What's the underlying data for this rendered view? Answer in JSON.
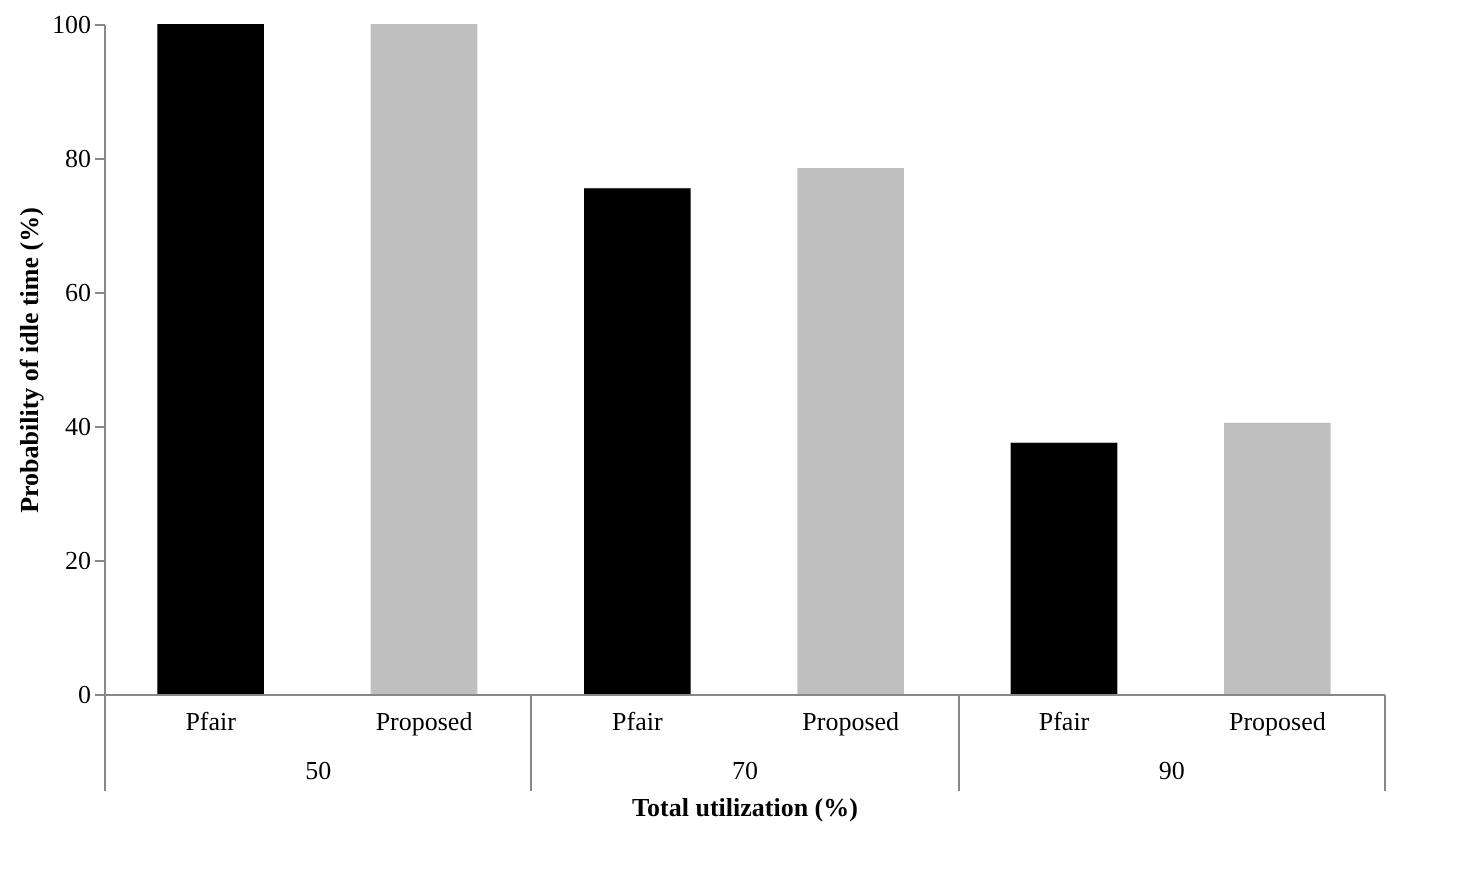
{
  "chart_data": {
    "type": "bar",
    "xlabel": "Total utilization (%)",
    "ylabel": "Probability of idle time (%)",
    "categories": [
      "50",
      "70",
      "90"
    ],
    "series": [
      {
        "name": "Pfair",
        "color": "#000000",
        "values": [
          100,
          75.5,
          37.5
        ]
      },
      {
        "name": "Proposed",
        "color": "#bfbfbf",
        "values": [
          100,
          78.5,
          40.5
        ]
      }
    ],
    "ylim": [
      0,
      100
    ],
    "yticks": [
      0,
      20,
      40,
      60,
      80,
      100
    ]
  }
}
